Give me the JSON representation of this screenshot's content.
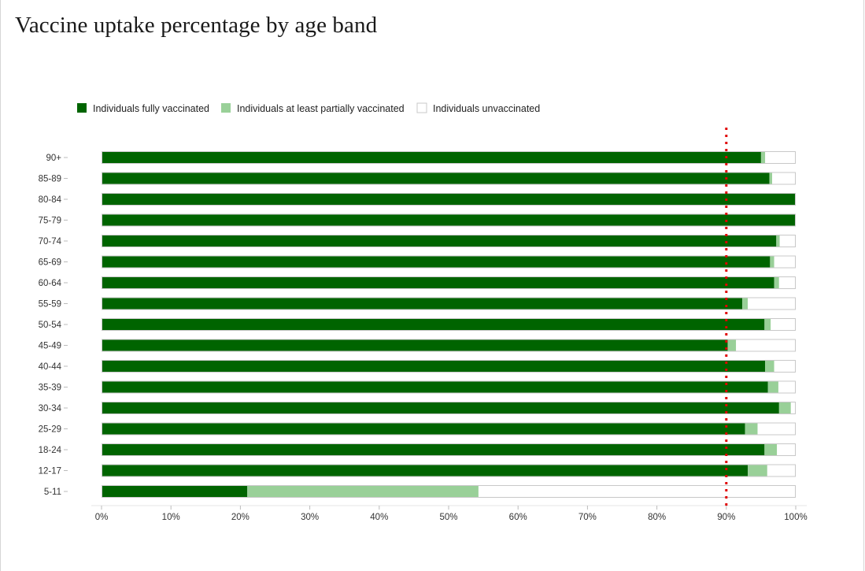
{
  "page": {
    "title": "Vaccine uptake percentage by age band"
  },
  "colors": {
    "fully": "#006400",
    "partial": "#99d098",
    "unvaccinated": "#ffffff",
    "bar_border": "#c8c8c8",
    "reference": "#e00000",
    "tick_text": "#333333"
  },
  "chart_data": {
    "type": "bar",
    "orientation": "horizontal",
    "stacked": true,
    "categories": [
      "90+",
      "85-89",
      "80-84",
      "75-79",
      "70-74",
      "65-69",
      "60-64",
      "55-59",
      "50-54",
      "45-49",
      "40-44",
      "35-39",
      "30-34",
      "25-29",
      "18-24",
      "12-17",
      "5-11"
    ],
    "series": [
      {
        "name": "Individuals fully vaccinated",
        "color": "#006400",
        "values": [
          95.0,
          96.2,
          100.0,
          100.0,
          97.2,
          96.3,
          96.9,
          92.3,
          95.5,
          90.2,
          95.6,
          96.0,
          97.6,
          92.7,
          95.5,
          93.1,
          21.0
        ]
      },
      {
        "name": "Individuals at least partially vaccinated",
        "color": "#99d098",
        "values": [
          0.6,
          0.4,
          0.0,
          0.0,
          0.5,
          0.6,
          0.7,
          0.8,
          0.9,
          1.2,
          1.3,
          1.5,
          1.7,
          1.8,
          1.8,
          2.8,
          33.3
        ]
      },
      {
        "name": "Individuals unvaccinated",
        "color": "#ffffff",
        "values": [
          4.4,
          3.4,
          0.0,
          0.0,
          2.3,
          3.1,
          2.4,
          6.9,
          3.6,
          8.6,
          3.1,
          2.5,
          0.7,
          5.5,
          2.7,
          4.1,
          45.7
        ]
      }
    ],
    "x_ticks": [
      "0%",
      "10%",
      "20%",
      "30%",
      "40%",
      "50%",
      "60%",
      "70%",
      "80%",
      "90%",
      "100%"
    ],
    "xlim": [
      0,
      100
    ],
    "reference_line": {
      "value": 90,
      "style": "dotted",
      "color": "#e00000"
    },
    "legend_position": "top-left",
    "grid": false,
    "xlabel": "",
    "ylabel": ""
  }
}
